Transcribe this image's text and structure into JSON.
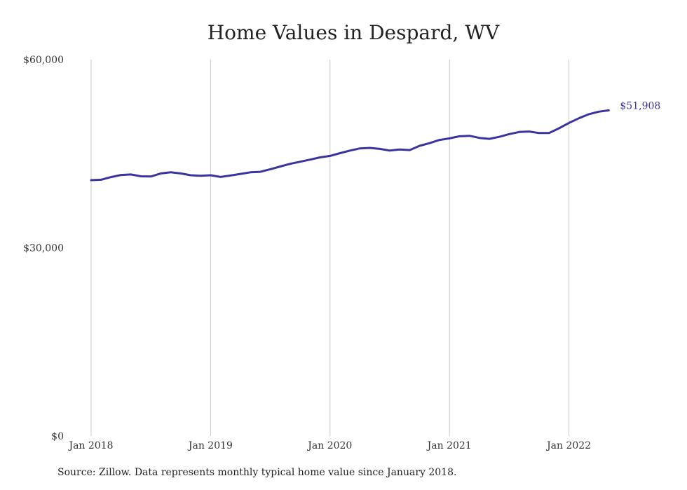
{
  "chart_data": {
    "type": "line",
    "title": "Home Values in Despard, WV",
    "xlabel": "",
    "ylabel": "",
    "x_ticks": [
      "Jan 2018",
      "Jan 2019",
      "Jan 2020",
      "Jan 2021",
      "Jan 2022"
    ],
    "y_ticks": [
      "$0",
      "$30,000",
      "$60,000"
    ],
    "y_tick_values": [
      0,
      30000,
      60000
    ],
    "ylim": [
      0,
      60000
    ],
    "x_range": [
      "2018-01",
      "2022-05"
    ],
    "grid": "vertical",
    "line_color": "#3a34a0",
    "end_label": "$51,908",
    "series": [
      {
        "values": [
          {
            "x": "2018-01",
            "y": 40780
          },
          {
            "x": "2018-02",
            "y": 40850
          },
          {
            "x": "2018-03",
            "y": 41270
          },
          {
            "x": "2018-04",
            "y": 41610
          },
          {
            "x": "2018-05",
            "y": 41690
          },
          {
            "x": "2018-06",
            "y": 41400
          },
          {
            "x": "2018-07",
            "y": 41360
          },
          {
            "x": "2018-08",
            "y": 41860
          },
          {
            "x": "2018-09",
            "y": 42030
          },
          {
            "x": "2018-10",
            "y": 41860
          },
          {
            "x": "2018-11",
            "y": 41560
          },
          {
            "x": "2018-12",
            "y": 41480
          },
          {
            "x": "2019-01",
            "y": 41560
          },
          {
            "x": "2019-02",
            "y": 41300
          },
          {
            "x": "2019-03",
            "y": 41520
          },
          {
            "x": "2019-04",
            "y": 41780
          },
          {
            "x": "2019-05",
            "y": 42030
          },
          {
            "x": "2019-06",
            "y": 42110
          },
          {
            "x": "2019-07",
            "y": 42530
          },
          {
            "x": "2019-08",
            "y": 42960
          },
          {
            "x": "2019-09",
            "y": 43380
          },
          {
            "x": "2019-10",
            "y": 43720
          },
          {
            "x": "2019-11",
            "y": 44060
          },
          {
            "x": "2019-12",
            "y": 44410
          },
          {
            "x": "2020-01",
            "y": 44650
          },
          {
            "x": "2020-02",
            "y": 45080
          },
          {
            "x": "2020-03",
            "y": 45500
          },
          {
            "x": "2020-04",
            "y": 45840
          },
          {
            "x": "2020-05",
            "y": 45920
          },
          {
            "x": "2020-06",
            "y": 45760
          },
          {
            "x": "2020-07",
            "y": 45500
          },
          {
            "x": "2020-08",
            "y": 45660
          },
          {
            "x": "2020-09",
            "y": 45580
          },
          {
            "x": "2020-10",
            "y": 46260
          },
          {
            "x": "2020-11",
            "y": 46680
          },
          {
            "x": "2020-12",
            "y": 47200
          },
          {
            "x": "2021-01",
            "y": 47440
          },
          {
            "x": "2021-02",
            "y": 47780
          },
          {
            "x": "2021-03",
            "y": 47860
          },
          {
            "x": "2021-04",
            "y": 47520
          },
          {
            "x": "2021-05",
            "y": 47360
          },
          {
            "x": "2021-06",
            "y": 47690
          },
          {
            "x": "2021-07",
            "y": 48120
          },
          {
            "x": "2021-08",
            "y": 48460
          },
          {
            "x": "2021-09",
            "y": 48540
          },
          {
            "x": "2021-10",
            "y": 48290
          },
          {
            "x": "2021-11",
            "y": 48290
          },
          {
            "x": "2021-12",
            "y": 49050
          },
          {
            "x": "2022-01",
            "y": 49900
          },
          {
            "x": "2022-02",
            "y": 50650
          },
          {
            "x": "2022-03",
            "y": 51300
          },
          {
            "x": "2022-04",
            "y": 51700
          },
          {
            "x": "2022-05",
            "y": 51908
          }
        ]
      }
    ]
  },
  "source_note": "Source: Zillow. Data represents monthly typical home value since January 2018."
}
